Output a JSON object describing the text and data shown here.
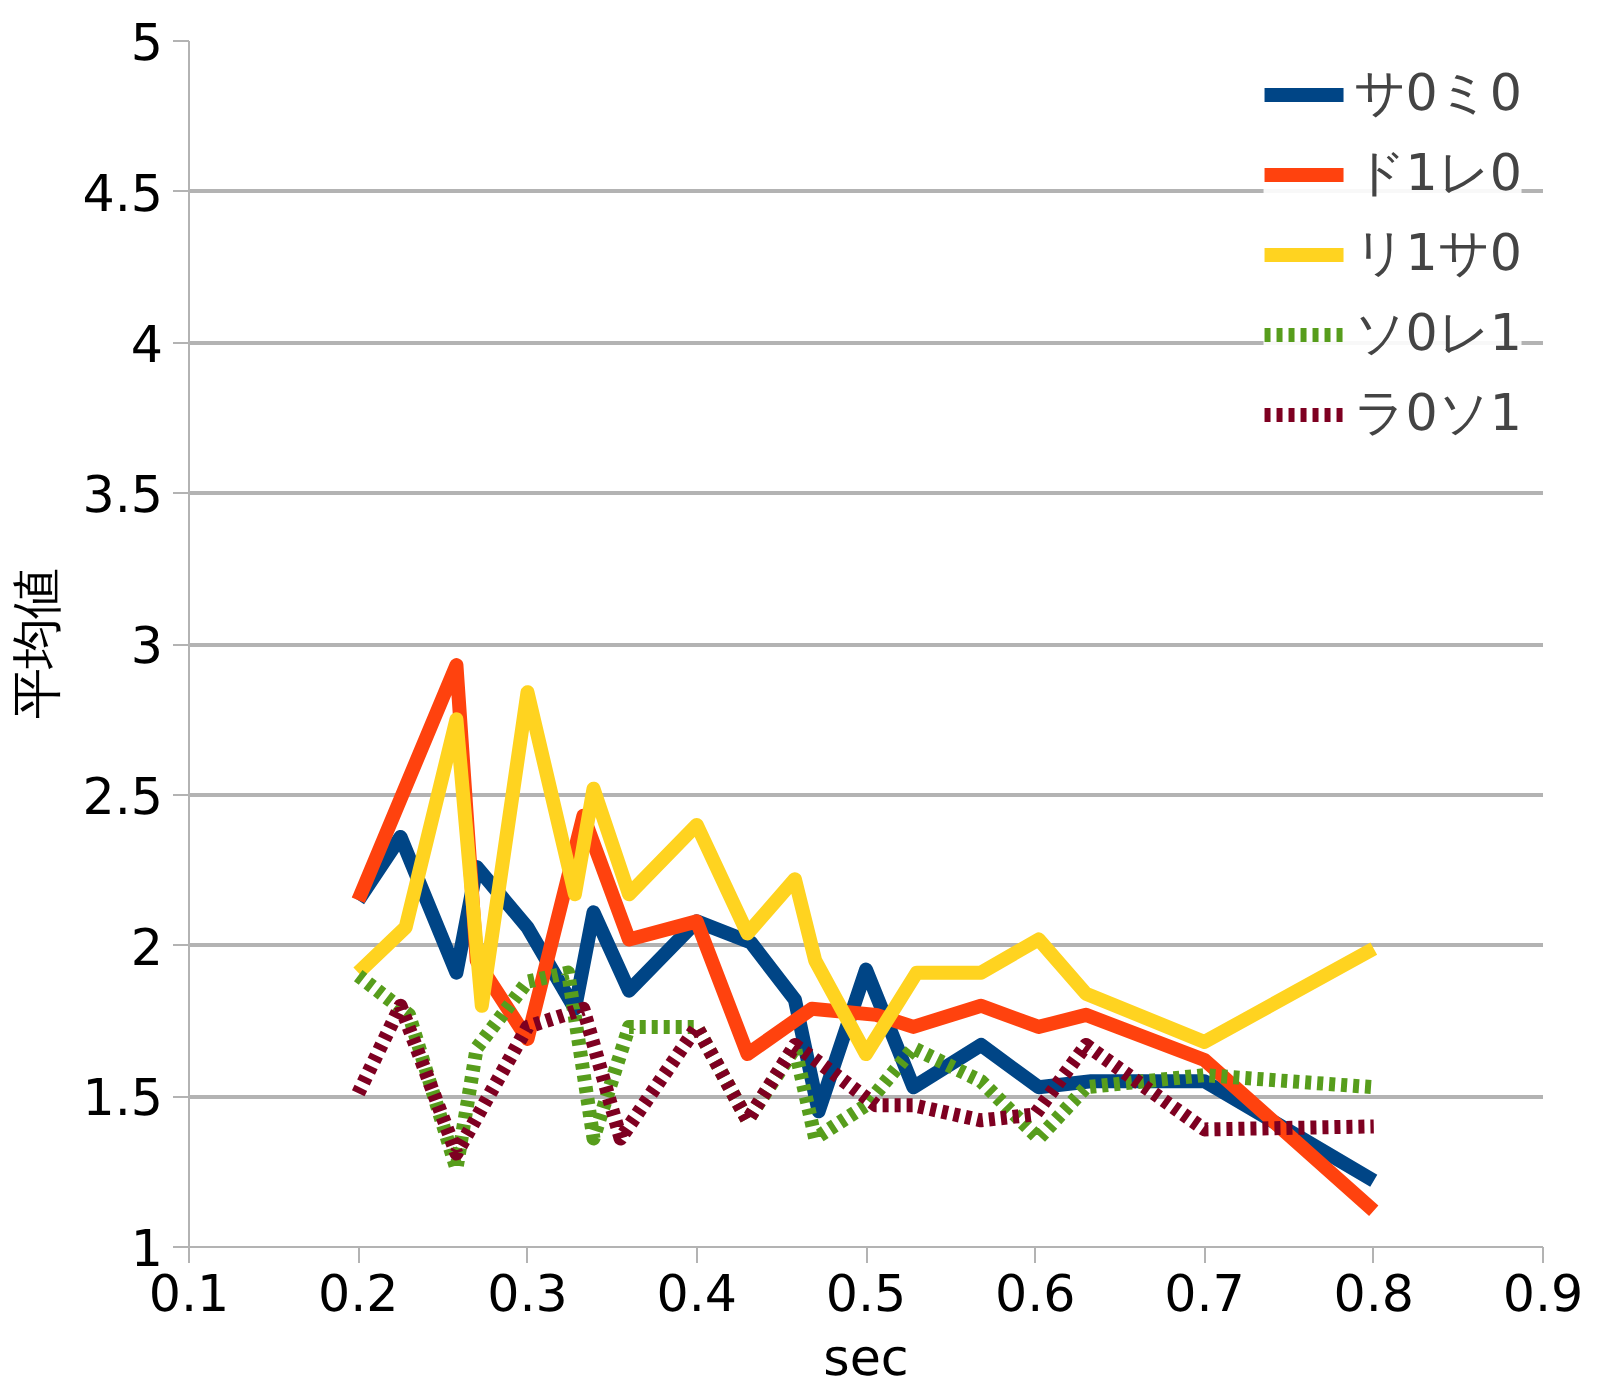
{
  "chart_data": {
    "type": "line",
    "xlabel": "sec",
    "ylabel": "平均値",
    "xlim": [
      0.1,
      0.9
    ],
    "xticks": [
      0.1,
      0.2,
      0.3,
      0.4,
      0.5,
      0.6,
      0.7,
      0.8,
      0.9
    ],
    "ylim": [
      1,
      5
    ],
    "yticks": [
      1,
      1.5,
      2,
      2.5,
      3,
      3.5,
      4,
      4.5,
      5
    ],
    "grid": "y",
    "legend": "top right",
    "marker": "none",
    "series": [
      {
        "name": "サ0ミ0",
        "color": "#004586",
        "line_style": "solid",
        "x": [
          0.2,
          0.225,
          0.258,
          0.27,
          0.3,
          0.328,
          0.339,
          0.36,
          0.4,
          0.432,
          0.458,
          0.472,
          0.5,
          0.528,
          0.568,
          0.602,
          0.633,
          0.7,
          0.8
        ],
        "values": [
          2.15,
          2.36,
          1.91,
          2.26,
          2.06,
          1.79,
          2.11,
          1.85,
          2.08,
          2.01,
          1.82,
          1.45,
          1.92,
          1.53,
          1.67,
          1.53,
          1.55,
          1.55,
          1.22
        ]
      },
      {
        "name": "ド1レ0",
        "color": "#ff420e",
        "line_style": "solid",
        "x": [
          0.2,
          0.258,
          0.27,
          0.3,
          0.333,
          0.36,
          0.4,
          0.43,
          0.468,
          0.506,
          0.528,
          0.568,
          0.602,
          0.63,
          0.7,
          0.8
        ],
        "values": [
          2.15,
          2.93,
          1.95,
          1.69,
          2.43,
          2.02,
          2.08,
          1.64,
          1.79,
          1.77,
          1.73,
          1.8,
          1.73,
          1.77,
          1.62,
          1.12
        ]
      },
      {
        "name": "リ1サ0",
        "color": "#ffd320",
        "line_style": "solid",
        "x": [
          0.2,
          0.228,
          0.258,
          0.273,
          0.3,
          0.328,
          0.339,
          0.36,
          0.4,
          0.43,
          0.458,
          0.47,
          0.5,
          0.53,
          0.568,
          0.602,
          0.63,
          0.7,
          0.8
        ],
        "values": [
          1.91,
          2.06,
          2.75,
          1.8,
          2.84,
          2.17,
          2.52,
          2.17,
          2.4,
          2.04,
          2.22,
          1.95,
          1.64,
          1.91,
          1.91,
          2.02,
          1.84,
          1.68,
          1.99
        ]
      },
      {
        "name": "ソ0レ1",
        "color": "#579d1c",
        "line_style": "dotted",
        "x": [
          0.2,
          0.23,
          0.258,
          0.27,
          0.3,
          0.324,
          0.339,
          0.36,
          0.4,
          0.43,
          0.458,
          0.47,
          0.5,
          0.528,
          0.568,
          0.602,
          0.63,
          0.7,
          0.8
        ],
        "values": [
          1.9,
          1.77,
          1.26,
          1.66,
          1.88,
          1.91,
          1.36,
          1.73,
          1.73,
          1.42,
          1.66,
          1.36,
          1.47,
          1.66,
          1.55,
          1.36,
          1.53,
          1.57,
          1.53
        ]
      },
      {
        "name": "ラ0ソ1",
        "color": "#7e0021",
        "line_style": "dotted",
        "x": [
          0.2,
          0.225,
          0.258,
          0.3,
          0.333,
          0.355,
          0.4,
          0.43,
          0.458,
          0.48,
          0.506,
          0.528,
          0.568,
          0.6,
          0.63,
          0.7,
          0.8
        ],
        "values": [
          1.51,
          1.8,
          1.31,
          1.73,
          1.79,
          1.36,
          1.73,
          1.42,
          1.67,
          1.58,
          1.47,
          1.47,
          1.42,
          1.44,
          1.67,
          1.39,
          1.4
        ]
      }
    ]
  }
}
